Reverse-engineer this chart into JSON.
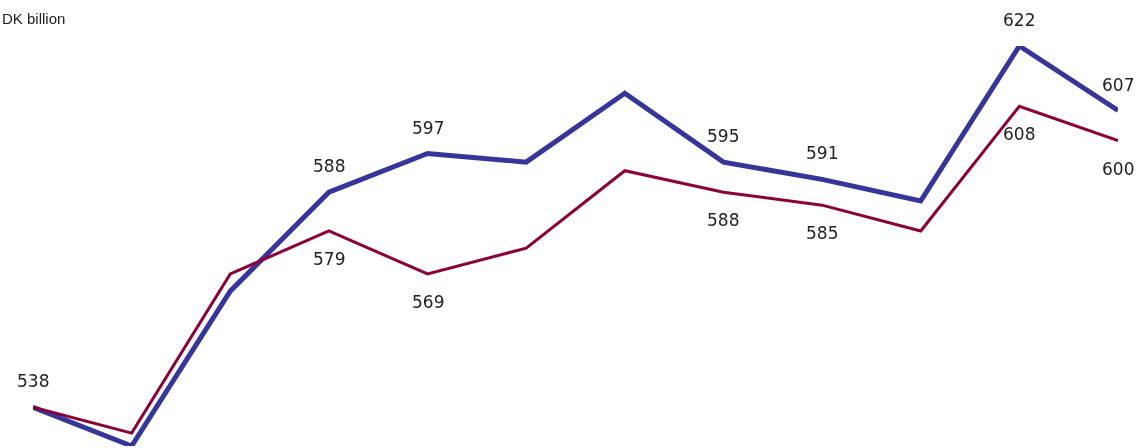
{
  "chart_data": {
    "type": "line",
    "ylabel": "DK billion",
    "categories": [
      null,
      null,
      null,
      null,
      null,
      null,
      null,
      null,
      null,
      null,
      null,
      null
    ],
    "series": [
      {
        "color": "#35359a",
        "values": [
          538,
          529,
          565,
          588,
          597,
          595,
          611,
          595,
          591,
          586,
          622,
          607
        ],
        "value_labels": [
          "538",
          null,
          null,
          "588",
          "597",
          null,
          null,
          "595",
          "591",
          null,
          "622",
          "607"
        ]
      },
      {
        "color": "#8b0037",
        "values": [
          538,
          532,
          569,
          579,
          569,
          575,
          593,
          588,
          585,
          579,
          608,
          600
        ],
        "value_labels": [
          null,
          null,
          null,
          "579",
          "569",
          null,
          null,
          "588",
          "585",
          null,
          "608",
          "600"
        ]
      }
    ],
    "marker": "none",
    "line_style": "solid"
  }
}
